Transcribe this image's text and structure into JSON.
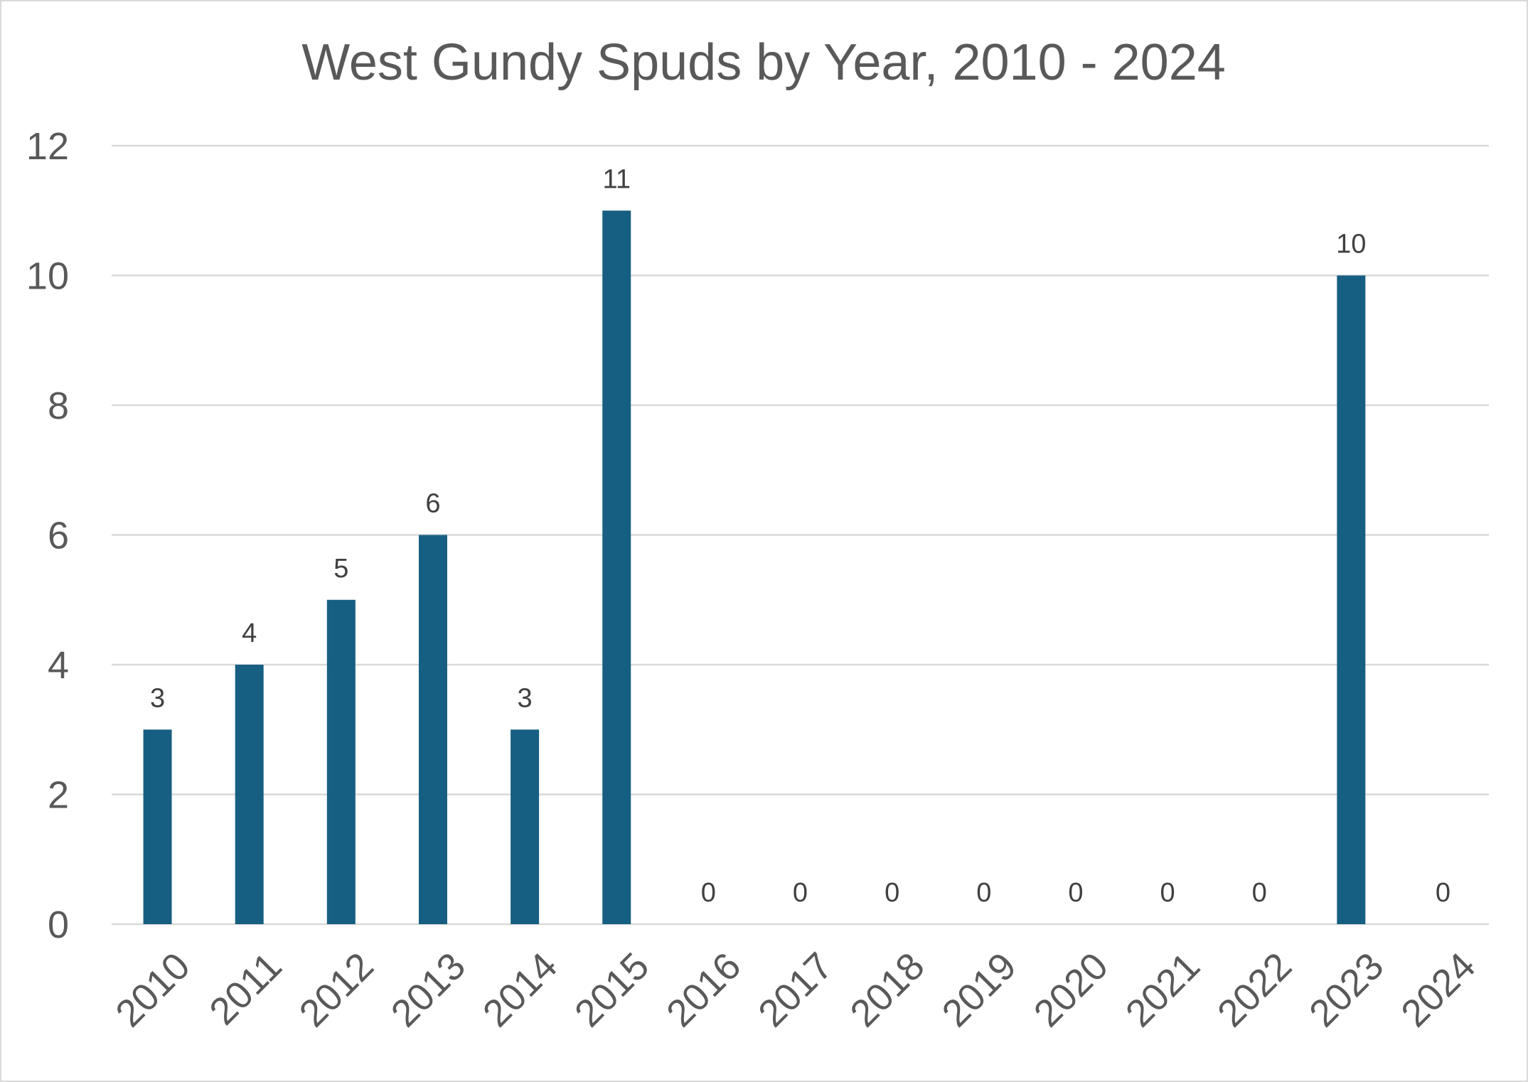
{
  "chart_data": {
    "type": "bar",
    "title": "West Gundy Spuds by Year, 2010 - 2024",
    "xlabel": "",
    "ylabel": "",
    "categories": [
      "2010",
      "2011",
      "2012",
      "2013",
      "2014",
      "2015",
      "2016",
      "2017",
      "2018",
      "2019",
      "2020",
      "2021",
      "2022",
      "2023",
      "2024"
    ],
    "values": [
      3,
      4,
      5,
      6,
      3,
      11,
      0,
      0,
      0,
      0,
      0,
      0,
      0,
      10,
      0
    ],
    "data_labels": [
      "3",
      "4",
      "5",
      "6",
      "3",
      "11",
      "0",
      "0",
      "0",
      "0",
      "0",
      "0",
      "0",
      "10",
      "0"
    ],
    "ylim": [
      0,
      12
    ],
    "yticks": [
      0,
      2,
      4,
      6,
      8,
      10,
      12
    ],
    "ytick_labels": [
      "0",
      "2",
      "4",
      "6",
      "8",
      "10",
      "12"
    ],
    "grid": true,
    "legend": "none",
    "bar_color": "#175F82",
    "gridline_color": "#D9D9D9",
    "text_color": "#595959"
  }
}
